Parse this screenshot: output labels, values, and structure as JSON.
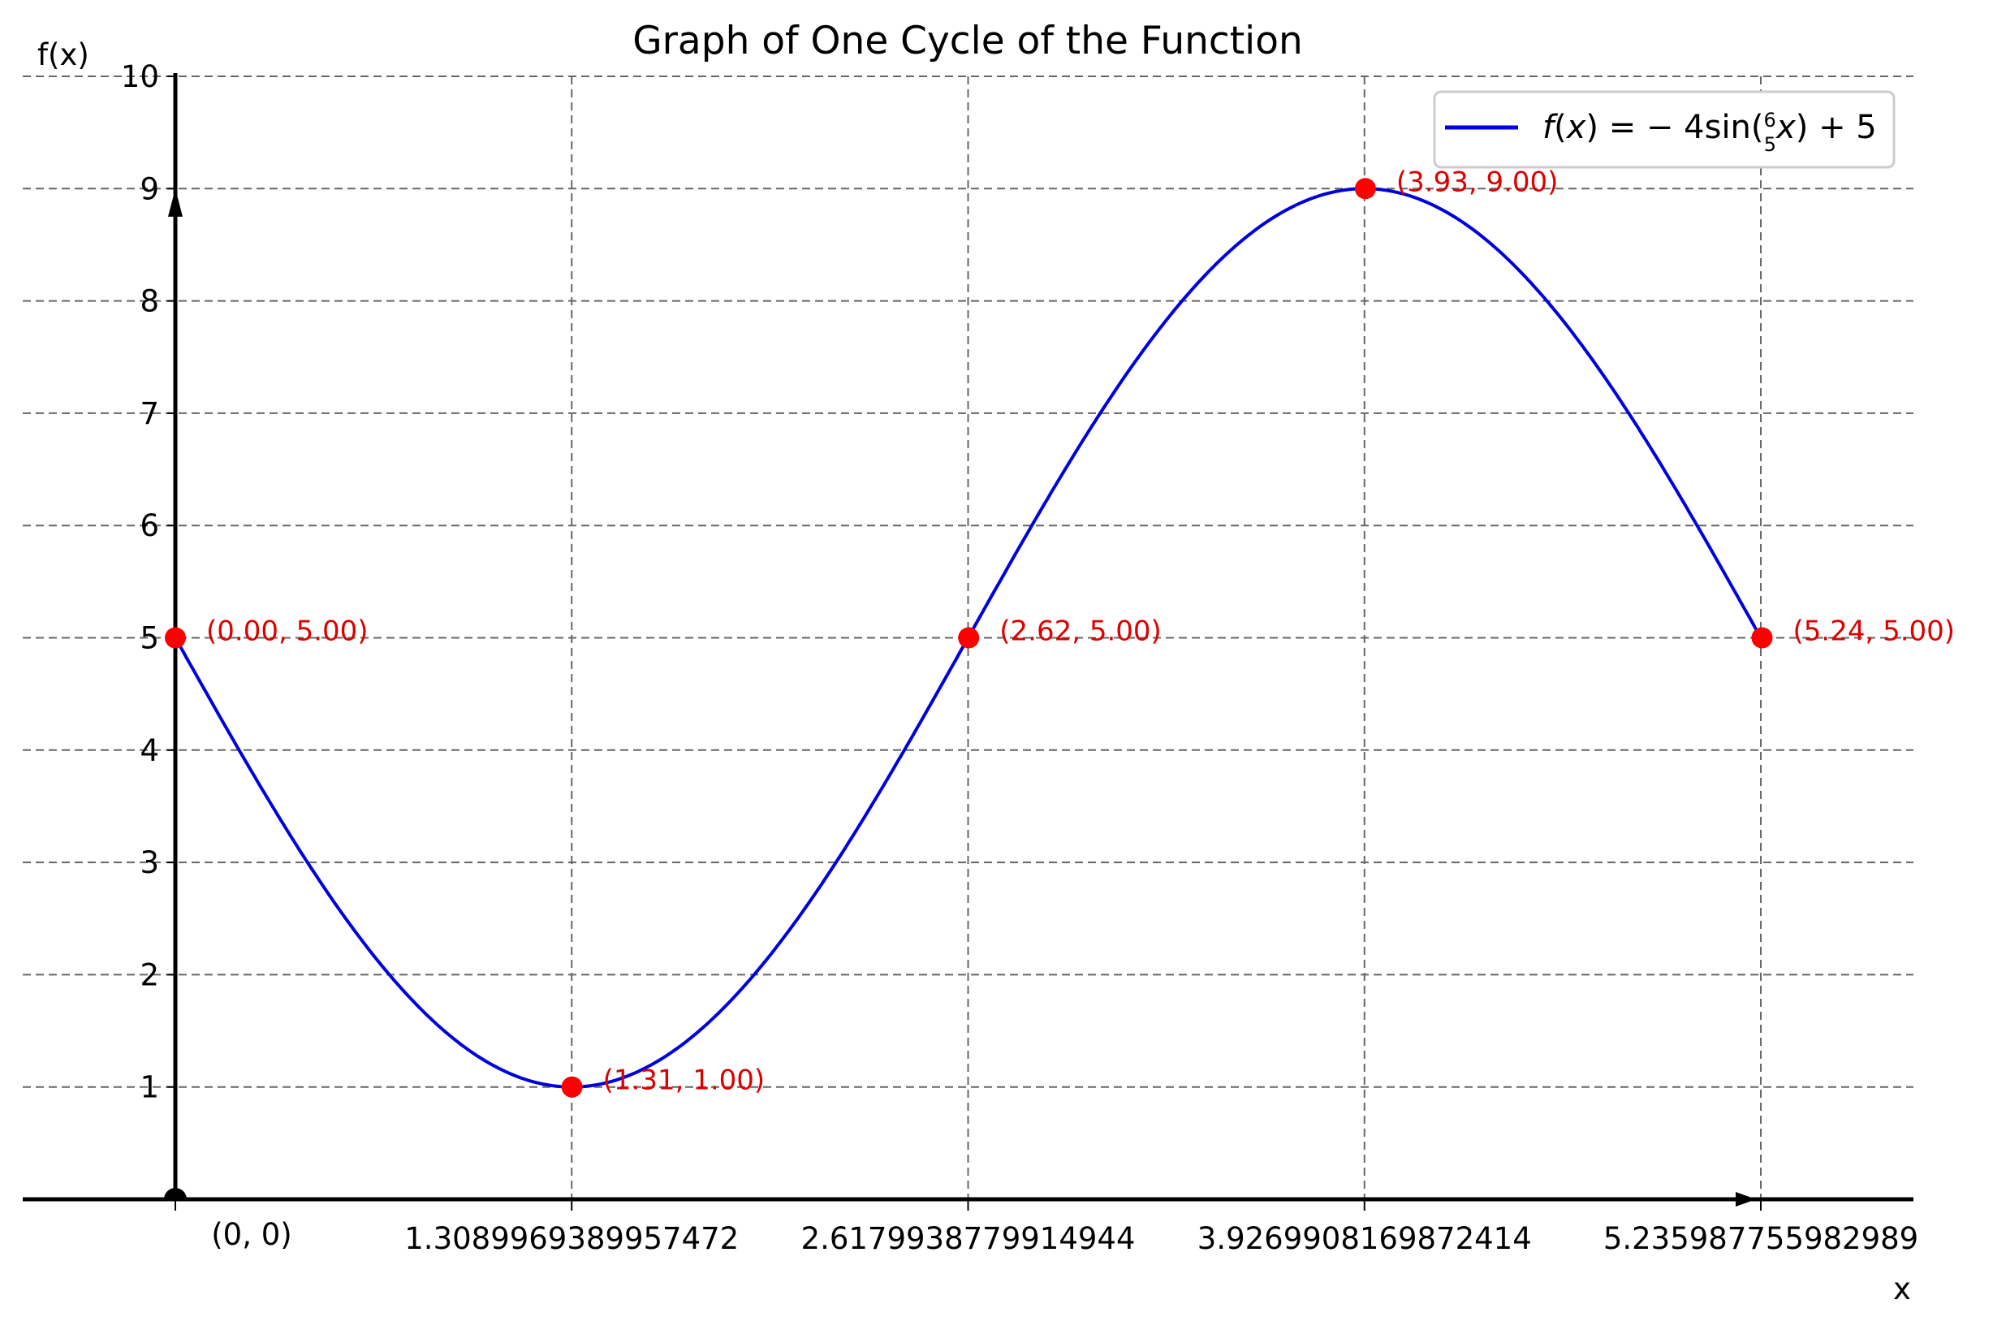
{
  "chart_data": {
    "type": "line",
    "title": "Graph of One Cycle of the Function",
    "xlabel": "x",
    "ylabel": "f(x)",
    "xlim": [
      -0.32,
      5.68
    ],
    "ylim": [
      0,
      10
    ],
    "grid": true,
    "legend_placement": "top-right",
    "x_ticks": [
      1.3089969389957472,
      2.6179938779914944,
      3.9269908169872414,
      5.235987755982989
    ],
    "x_tick_labels": [
      "1.3089969389957472",
      "2.6179938779914944",
      "3.9269908169872414",
      "5.235987755982989"
    ],
    "origin_label": "(0, 0)",
    "y_ticks": [
      1,
      2,
      3,
      4,
      5,
      6,
      7,
      8,
      9,
      10
    ],
    "y_tick_labels": [
      "1",
      "2",
      "3",
      "4",
      "5",
      "6",
      "7",
      "8",
      "9",
      "10"
    ],
    "series": [
      {
        "name": "f(x) = − 4sin(6/5 x) + 5",
        "function": "-4*sin(1.2*x)+5",
        "x_range": [
          0,
          5.235987755982989
        ],
        "color": "#0000dd"
      }
    ],
    "key_points": [
      {
        "x": 0.0,
        "y": 5.0,
        "label": "(0.00, 5.00)"
      },
      {
        "x": 1.31,
        "y": 1.0,
        "label": "(1.31, 1.00)"
      },
      {
        "x": 2.62,
        "y": 5.0,
        "label": "(2.62, 5.00)"
      },
      {
        "x": 3.93,
        "y": 9.0,
        "label": "(3.93, 9.00)"
      },
      {
        "x": 5.24,
        "y": 5.0,
        "label": "(5.24, 5.00)"
      }
    ],
    "point_color": "#ff0000",
    "annotation_color": "#dd0000"
  }
}
